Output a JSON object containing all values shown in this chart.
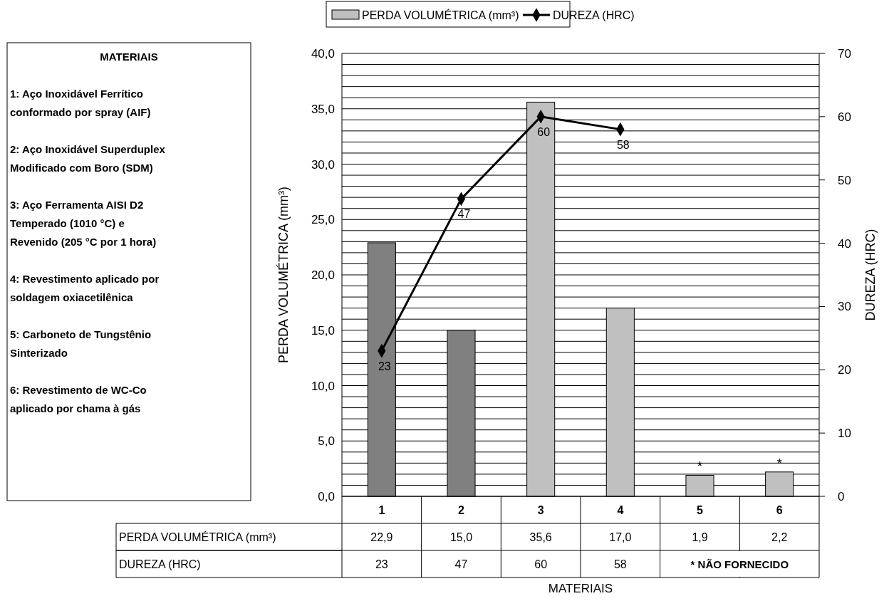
{
  "chart_data": {
    "type": "bar",
    "categories": [
      "1",
      "2",
      "3",
      "4",
      "5",
      "6"
    ],
    "series": [
      {
        "name": "PERDA VOLUMÉTRICA (mm³)",
        "colors": [
          "#808080",
          "#808080",
          "#c0c0c0",
          "#c0c0c0",
          "#c0c0c0",
          "#c0c0c0"
        ],
        "values": [
          22.9,
          15.0,
          35.6,
          17.0,
          1.9,
          2.2
        ],
        "value_labels": [
          "22,9",
          "15,0",
          "35,6",
          "17,0",
          "1,9",
          "2,2"
        ]
      },
      {
        "name": "DUREZA (HRC)",
        "type": "line",
        "axis": "y2",
        "color": "#000000",
        "marker": "diamond",
        "values": [
          23,
          47,
          60,
          58,
          null,
          null
        ],
        "value_labels": [
          "23",
          "47",
          "60",
          "58",
          null,
          null
        ]
      }
    ],
    "ylabel": "PERDA VOLUMÉTRICA (mm³)",
    "y2label": "DUREZA (HRC)",
    "ylim": [
      0,
      40
    ],
    "yticks": [
      {
        "value": 0,
        "label": "0,0"
      },
      {
        "value": 1,
        "label": null
      },
      {
        "value": 2,
        "label": null
      },
      {
        "value": 3,
        "label": null
      },
      {
        "value": 4,
        "label": null
      },
      {
        "value": 5,
        "label": "5,0"
      },
      {
        "value": 6,
        "label": null
      },
      {
        "value": 7,
        "label": null
      },
      {
        "value": 8,
        "label": null
      },
      {
        "value": 9,
        "label": null
      },
      {
        "value": 10,
        "label": "10,0"
      },
      {
        "value": 11,
        "label": null
      },
      {
        "value": 12,
        "label": null
      },
      {
        "value": 13,
        "label": null
      },
      {
        "value": 14,
        "label": null
      },
      {
        "value": 15,
        "label": "15,0"
      },
      {
        "value": 16,
        "label": null
      },
      {
        "value": 17,
        "label": null
      },
      {
        "value": 18,
        "label": null
      },
      {
        "value": 19,
        "label": null
      },
      {
        "value": 20,
        "label": "20,0"
      },
      {
        "value": 21,
        "label": null
      },
      {
        "value": 22,
        "label": null
      },
      {
        "value": 23,
        "label": null
      },
      {
        "value": 24,
        "label": null
      },
      {
        "value": 25,
        "label": "25,0"
      },
      {
        "value": 26,
        "label": null
      },
      {
        "value": 27,
        "label": null
      },
      {
        "value": 28,
        "label": null
      },
      {
        "value": 29,
        "label": null
      },
      {
        "value": 30,
        "label": "30,0"
      },
      {
        "value": 31,
        "label": null
      },
      {
        "value": 32,
        "label": null
      },
      {
        "value": 33,
        "label": null
      },
      {
        "value": 34,
        "label": null
      },
      {
        "value": 35,
        "label": "35,0"
      },
      {
        "value": 36,
        "label": null
      },
      {
        "value": 37,
        "label": null
      },
      {
        "value": 38,
        "label": null
      },
      {
        "value": 39,
        "label": null
      },
      {
        "value": 40,
        "label": "40,0"
      }
    ],
    "y2lim": [
      0,
      70
    ],
    "y2ticks": [
      0,
      10,
      20,
      30,
      40,
      50,
      60,
      70
    ],
    "grid": "y",
    "legend": "top",
    "line_style": "solid",
    "annotations": [
      "MATERIAIS",
      "1: Aço Inoxidável Ferrítico\nconformado por spray (AIF)",
      "2: Aço Inoxidável Superduplex\nModificado com Boro (SDM)",
      "3: Aço Ferramenta AISI D2\nTemperado (1010 °C) e\nRevenido (205 °C por 1 hora)",
      "4: Revestimento aplicado por\nsoldagem oxiacetilênica",
      "5: Carboneto de Tungstênio\nSinterizado",
      "6: Revestimento de WC-Co\naplicado por chama à gás",
      "* NÃO FORNECIDO",
      "MATERIAIS",
      {
        "text": "*",
        "x": "5",
        "y": 1.9
      },
      {
        "text": "*",
        "x": "6",
        "y": 2.2
      }
    ]
  }
}
